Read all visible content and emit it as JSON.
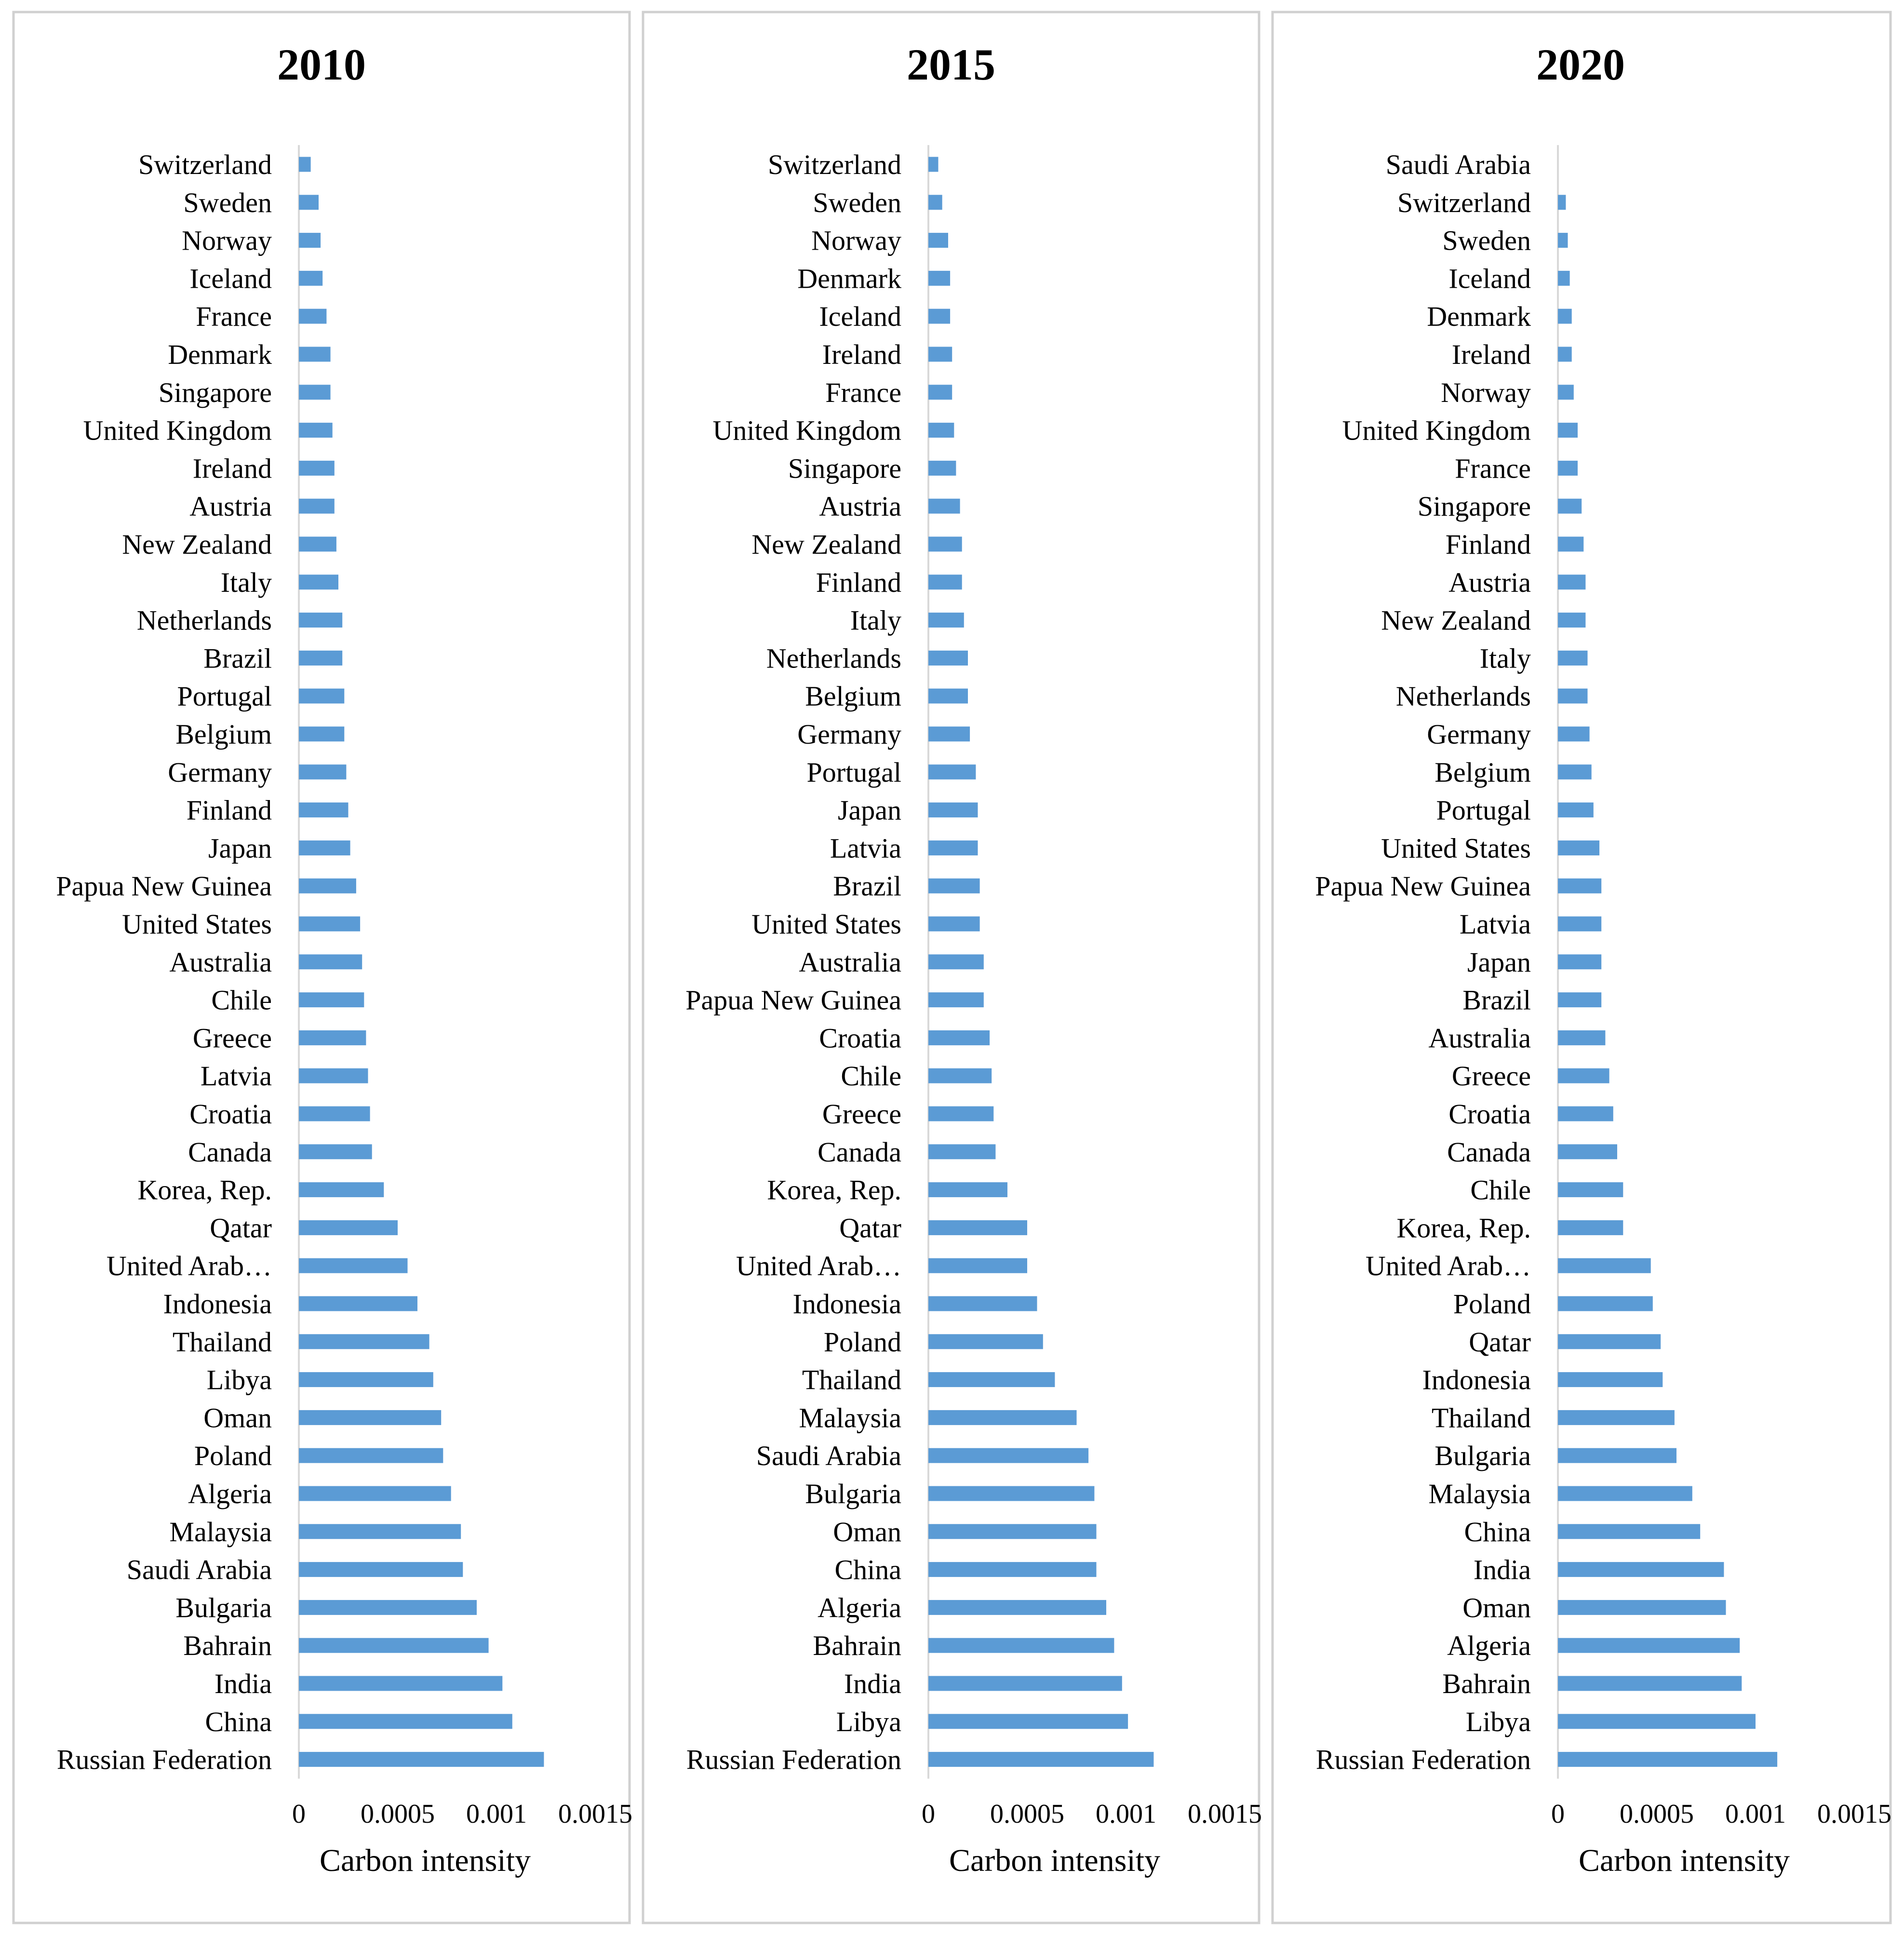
{
  "colors": {
    "bar": "#5b9bd5",
    "panel_border": "#d0d0d0",
    "axis": "#d9d9d9"
  },
  "chart_data": [
    {
      "type": "bar",
      "orientation": "horizontal",
      "title": "2010",
      "xlabel": "Carbon intensity",
      "ylabel": "",
      "xlim": [
        0,
        0.0015
      ],
      "xticks": [
        0,
        0.0005,
        0.001,
        0.0015
      ],
      "xtick_labels": [
        "0",
        "0.0005",
        "0.001",
        "0.0015"
      ],
      "categories": [
        "Switzerland",
        "Sweden",
        "Norway",
        "Iceland",
        "France",
        "Denmark",
        "Singapore",
        "United Kingdom",
        "Ireland",
        "Austria",
        "New Zealand",
        "Italy",
        "Netherlands",
        "Brazil",
        "Portugal",
        "Belgium",
        "Germany",
        "Finland",
        "Japan",
        "Papua New Guinea",
        "United States",
        "Australia",
        "Chile",
        "Greece",
        "Latvia",
        "Croatia",
        "Canada",
        "Korea, Rep.",
        "Qatar",
        "United Arab…",
        "Indonesia",
        "Thailand",
        "Libya",
        "Oman",
        "Poland",
        "Algeria",
        "Malaysia",
        "Saudi Arabia",
        "Bulgaria",
        "Bahrain",
        "India",
        "China",
        "Russian Federation"
      ],
      "values": [
        6e-05,
        0.0001,
        0.00011,
        0.00012,
        0.00014,
        0.00016,
        0.00016,
        0.00017,
        0.00018,
        0.00018,
        0.00019,
        0.0002,
        0.00022,
        0.00022,
        0.00023,
        0.00023,
        0.00024,
        0.00025,
        0.00026,
        0.00029,
        0.00031,
        0.00032,
        0.00033,
        0.00034,
        0.00035,
        0.00036,
        0.00037,
        0.00043,
        0.0005,
        0.00055,
        0.0006,
        0.00066,
        0.00068,
        0.00072,
        0.00073,
        0.00077,
        0.00082,
        0.00083,
        0.0009,
        0.00096,
        0.00103,
        0.00108,
        0.00124
      ]
    },
    {
      "type": "bar",
      "orientation": "horizontal",
      "title": "2015",
      "xlabel": "Carbon intensity",
      "ylabel": "",
      "xlim": [
        0,
        0.0015
      ],
      "xticks": [
        0,
        0.0005,
        0.001,
        0.0015
      ],
      "xtick_labels": [
        "0",
        "0.0005",
        "0.001",
        "0.0015"
      ],
      "categories": [
        "Switzerland",
        "Sweden",
        "Norway",
        "Denmark",
        "Iceland",
        "Ireland",
        "France",
        "United Kingdom",
        "Singapore",
        "Austria",
        "New Zealand",
        "Finland",
        "Italy",
        "Netherlands",
        "Belgium",
        "Germany",
        "Portugal",
        "Japan",
        "Latvia",
        "Brazil",
        "United States",
        "Australia",
        "Papua New Guinea",
        "Croatia",
        "Chile",
        "Greece",
        "Canada",
        "Korea, Rep.",
        "Qatar",
        "United Arab…",
        "Indonesia",
        "Poland",
        "Thailand",
        "Malaysia",
        "Saudi Arabia",
        "Bulgaria",
        "Oman",
        "China",
        "Algeria",
        "Bahrain",
        "India",
        "Libya",
        "Russian Federation"
      ],
      "values": [
        5e-05,
        7e-05,
        0.0001,
        0.00011,
        0.00011,
        0.00012,
        0.00012,
        0.00013,
        0.00014,
        0.00016,
        0.00017,
        0.00017,
        0.00018,
        0.0002,
        0.0002,
        0.00021,
        0.00024,
        0.00025,
        0.00025,
        0.00026,
        0.00026,
        0.00028,
        0.00028,
        0.00031,
        0.00032,
        0.00033,
        0.00034,
        0.0004,
        0.0005,
        0.0005,
        0.00055,
        0.00058,
        0.00064,
        0.00075,
        0.00081,
        0.00084,
        0.00085,
        0.00085,
        0.0009,
        0.00094,
        0.00098,
        0.00101,
        0.00114
      ]
    },
    {
      "type": "bar",
      "orientation": "horizontal",
      "title": "2020",
      "xlabel": "Carbon intensity",
      "ylabel": "",
      "xlim": [
        0,
        0.0015
      ],
      "xticks": [
        0,
        0.0005,
        0.001,
        0.0015
      ],
      "xtick_labels": [
        "0",
        "0.0005",
        "0.001",
        "0.0015"
      ],
      "categories": [
        "Saudi Arabia",
        "Switzerland",
        "Sweden",
        "Iceland",
        "Denmark",
        "Ireland",
        "Norway",
        "United Kingdom",
        "France",
        "Singapore",
        "Finland",
        "Austria",
        "New Zealand",
        "Italy",
        "Netherlands",
        "Germany",
        "Belgium",
        "Portugal",
        "United States",
        "Papua New Guinea",
        "Latvia",
        "Japan",
        "Brazil",
        "Australia",
        "Greece",
        "Croatia",
        "Canada",
        "Chile",
        "Korea, Rep.",
        "United Arab…",
        "Poland",
        "Qatar",
        "Indonesia",
        "Thailand",
        "Bulgaria",
        "Malaysia",
        "China",
        "India",
        "Oman",
        "Algeria",
        "Bahrain",
        "Libya",
        "Russian Federation"
      ],
      "values": [
        0,
        4e-05,
        5e-05,
        6e-05,
        7e-05,
        7e-05,
        8e-05,
        0.0001,
        0.0001,
        0.00012,
        0.00013,
        0.00014,
        0.00014,
        0.00015,
        0.00015,
        0.00016,
        0.00017,
        0.00018,
        0.00021,
        0.00022,
        0.00022,
        0.00022,
        0.00022,
        0.00024,
        0.00026,
        0.00028,
        0.0003,
        0.00033,
        0.00033,
        0.00047,
        0.00048,
        0.00052,
        0.00053,
        0.00059,
        0.0006,
        0.00068,
        0.00072,
        0.00084,
        0.00085,
        0.00092,
        0.00093,
        0.001,
        0.00111
      ]
    }
  ]
}
